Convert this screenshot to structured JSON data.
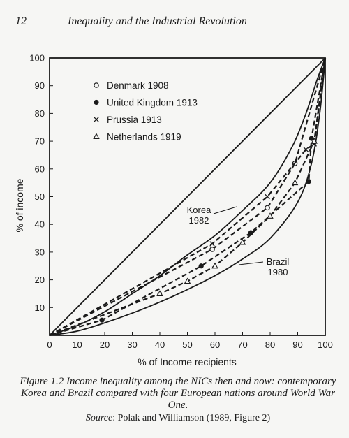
{
  "page": {
    "number": "12",
    "running_title": "Inequality and the Industrial Revolution"
  },
  "caption": {
    "figure": "Figure 1.2",
    "text": "Income inequality among the NICs then and now: contemporary Korea and Brazil compared with four European nations around World War One.",
    "source_label": "Source",
    "source_text": ": Polak and Williamson (1989, Figure 2)"
  },
  "chart_data": {
    "type": "line",
    "xlabel": "% of Income recipients",
    "ylabel": "% of income",
    "xlim": [
      0,
      100
    ],
    "ylim": [
      0,
      100
    ],
    "xticks": [
      0,
      10,
      20,
      30,
      40,
      50,
      60,
      70,
      80,
      90,
      100
    ],
    "yticks": [
      10,
      20,
      30,
      40,
      50,
      60,
      70,
      80,
      90,
      100
    ],
    "grid": false,
    "legend_position": "top-left",
    "colors": {
      "ink": "#1a1a1a",
      "paper": "#f6f6f4"
    },
    "equality_line": {
      "x": [
        0,
        100
      ],
      "y": [
        0,
        100
      ]
    },
    "series": [
      {
        "name": "Denmark 1908",
        "marker": "open-circle",
        "style": "dashed",
        "x": [
          0,
          59,
          79,
          89,
          100
        ],
        "y": [
          0,
          31,
          46,
          62,
          100
        ]
      },
      {
        "name": "United Kingdom 1913",
        "marker": "filled-circle",
        "style": "dashed",
        "x": [
          0,
          19,
          55,
          73,
          94,
          95,
          100
        ],
        "y": [
          0,
          5.5,
          25,
          37,
          55.5,
          71,
          100
        ]
      },
      {
        "name": "Prussia 1913",
        "marker": "x",
        "style": "dashed",
        "x": [
          0,
          59,
          79,
          93,
          96,
          100
        ],
        "y": [
          0,
          33,
          50,
          67,
          69,
          100
        ]
      },
      {
        "name": "Netherlands 1919",
        "marker": "open-triangle",
        "style": "dashed",
        "x": [
          0,
          40,
          50,
          60,
          70,
          80,
          89,
          96,
          100
        ],
        "y": [
          0,
          15,
          19.5,
          25,
          33.5,
          43,
          55,
          70,
          100
        ]
      }
    ],
    "lorenz_curves": [
      {
        "label": "Korea\n1982",
        "style": "solid",
        "x": [
          0,
          10,
          20,
          30,
          40,
          50,
          60,
          70,
          80,
          88,
          93,
          97,
          100
        ],
        "y": [
          0,
          3.5,
          8.5,
          15,
          21.5,
          29,
          36,
          45,
          55,
          68,
          80,
          92,
          100
        ]
      },
      {
        "label": "Brazil\n1980",
        "style": "solid",
        "x": [
          0,
          10,
          20,
          30,
          40,
          50,
          60,
          70,
          80,
          90,
          95,
          98,
          100
        ],
        "y": [
          0,
          1.5,
          4.5,
          8,
          12,
          16.5,
          21.5,
          27.5,
          35,
          48,
          62,
          80,
          100
        ]
      }
    ]
  }
}
